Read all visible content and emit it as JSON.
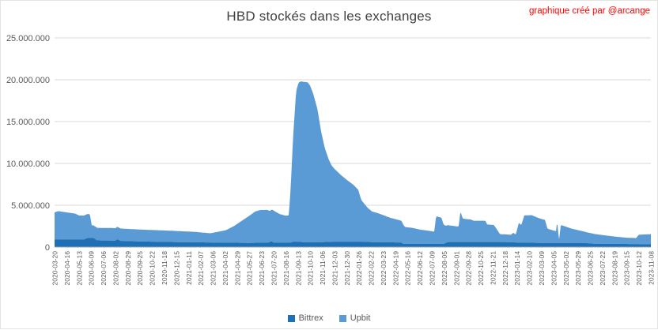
{
  "title": "HBD stockés dans les exchanges",
  "credit": "graphique créé par @arcange",
  "colors": {
    "bittrex": "#1F6FB5",
    "upbit": "#5B9BD5",
    "grid": "#D9D9D9",
    "axis_line": "#A6A6A6",
    "axis_text": "#595959",
    "title_text": "#404040",
    "credit_text": "#FF0000"
  },
  "chart_data": {
    "type": "area",
    "stacked": true,
    "title": "HBD stockés dans les exchanges",
    "legend_position": "bottom",
    "grid": "horizontal",
    "unit": "millions of HBD",
    "ylim_millions": [
      0,
      25
    ],
    "y_ticks": [
      "0",
      "5.000.000",
      "10.000.000",
      "15.000.000",
      "20.000.000",
      "25.000.000"
    ],
    "x_unit": "fractional tick index, 0 = 2020-03-20, 49 = 2023-11-08",
    "x_tick_labels": [
      "2020-03-20",
      "2020-04-16",
      "2020-05-13",
      "2020-06-09",
      "2020-07-06",
      "2020-08-02",
      "2020-08-29",
      "2020-09-25",
      "2020-10-22",
      "2020-11-18",
      "2020-12-15",
      "2021-01-11",
      "2021-02-07",
      "2021-03-06",
      "2021-04-02",
      "2021-04-29",
      "2021-05-27",
      "2021-06-23",
      "2021-07-20",
      "2021-08-16",
      "2021-09-13",
      "2021-10-10",
      "2021-11-06",
      "2021-12-03",
      "2021-12-30",
      "2022-01-26",
      "2022-02-22",
      "2022-03-23",
      "2022-04-19",
      "2022-05-16",
      "2022-06-12",
      "2022-07-09",
      "2022-08-05",
      "2022-09-01",
      "2022-09-28",
      "2022-10-25",
      "2022-11-21",
      "2022-12-18",
      "2023-01-14",
      "2023-02-10",
      "2023-03-09",
      "2023-04-05",
      "2023-05-02",
      "2023-05-29",
      "2023-06-25",
      "2023-07-22",
      "2023-08-19",
      "2023-09-15",
      "2023-10-12",
      "2023-11-08"
    ],
    "series": [
      {
        "name": "Bittrex",
        "color": "#1F6FB5",
        "points": [
          [
            0,
            0.9
          ],
          [
            2.4,
            0.9
          ],
          [
            2.7,
            1.1
          ],
          [
            3.2,
            1.1
          ],
          [
            3.5,
            0.8
          ],
          [
            5.0,
            0.78
          ],
          [
            5.15,
            0.95
          ],
          [
            5.45,
            0.75
          ],
          [
            7,
            0.68
          ],
          [
            10,
            0.6
          ],
          [
            13,
            0.55
          ],
          [
            16,
            0.5
          ],
          [
            17.6,
            0.55
          ],
          [
            17.8,
            0.7
          ],
          [
            18.0,
            0.55
          ],
          [
            19.4,
            0.55
          ],
          [
            19.6,
            0.65
          ],
          [
            20.2,
            0.65
          ],
          [
            20.4,
            0.58
          ],
          [
            22,
            0.6
          ],
          [
            23,
            0.65
          ],
          [
            25.2,
            0.65
          ],
          [
            26,
            0.6
          ],
          [
            28.5,
            0.55
          ],
          [
            28.65,
            0.4
          ],
          [
            32.0,
            0.4
          ],
          [
            32.3,
            0.6
          ],
          [
            37.0,
            0.6
          ],
          [
            38,
            0.55
          ],
          [
            40,
            0.5
          ],
          [
            43.5,
            0.5
          ],
          [
            44.4,
            0.4
          ],
          [
            46.5,
            0.38
          ],
          [
            49,
            0.35
          ]
        ]
      },
      {
        "name": "Upbit",
        "color": "#5B9BD5",
        "points": [
          [
            0,
            3.25
          ],
          [
            0.3,
            3.4
          ],
          [
            1.7,
            3.1
          ],
          [
            2.0,
            2.88
          ],
          [
            2.9,
            2.85
          ],
          [
            3.05,
            1.5
          ],
          [
            4.5,
            1.5
          ],
          [
            7,
            1.42
          ],
          [
            9.5,
            1.35
          ],
          [
            11.5,
            1.25
          ],
          [
            12.8,
            1.1
          ],
          [
            14.1,
            1.5
          ],
          [
            14.75,
            2.0
          ],
          [
            15.4,
            2.65
          ],
          [
            16.05,
            3.3
          ],
          [
            16.5,
            3.75
          ],
          [
            16.9,
            3.9
          ],
          [
            17.5,
            3.9
          ],
          [
            17.7,
            3.7
          ],
          [
            17.95,
            3.85
          ],
          [
            18.5,
            3.4
          ],
          [
            19.0,
            3.2
          ],
          [
            19.25,
            3.25
          ],
          [
            19.4,
            6.5
          ],
          [
            19.6,
            12.5
          ],
          [
            19.85,
            18.0
          ],
          [
            20.05,
            19.0
          ],
          [
            20.3,
            19.2
          ],
          [
            20.8,
            19.1
          ],
          [
            21.0,
            18.7
          ],
          [
            21.25,
            17.75
          ],
          [
            21.6,
            15.9
          ],
          [
            21.9,
            13.25
          ],
          [
            22.2,
            11.25
          ],
          [
            22.5,
            9.95
          ],
          [
            22.75,
            9.15
          ],
          [
            23.0,
            8.7
          ],
          [
            23.5,
            8.0
          ],
          [
            24.0,
            7.4
          ],
          [
            24.55,
            6.8
          ],
          [
            24.95,
            6.2
          ],
          [
            25.2,
            5.0
          ],
          [
            25.5,
            4.45
          ],
          [
            25.75,
            4.05
          ],
          [
            26.1,
            3.65
          ],
          [
            26.5,
            3.5
          ],
          [
            27.0,
            3.25
          ],
          [
            27.55,
            2.95
          ],
          [
            28.1,
            2.75
          ],
          [
            28.5,
            2.6
          ],
          [
            28.8,
            2.0
          ],
          [
            29.4,
            1.9
          ],
          [
            30.0,
            1.7
          ],
          [
            30.5,
            1.6
          ],
          [
            31.2,
            1.45
          ],
          [
            31.35,
            3.3
          ],
          [
            31.8,
            3.1
          ],
          [
            31.95,
            2.35
          ],
          [
            32.15,
            2.05
          ],
          [
            33.2,
            1.85
          ],
          [
            33.35,
            3.65
          ],
          [
            33.55,
            2.8
          ],
          [
            34.2,
            2.7
          ],
          [
            34.45,
            2.55
          ],
          [
            35.4,
            2.55
          ],
          [
            35.55,
            2.1
          ],
          [
            36.1,
            2.05
          ],
          [
            36.4,
            1.4
          ],
          [
            36.6,
            0.95
          ],
          [
            37.5,
            0.9
          ],
          [
            37.7,
            1.15
          ],
          [
            37.9,
            0.95
          ],
          [
            38.15,
            2.35
          ],
          [
            38.35,
            2.1
          ],
          [
            38.6,
            3.25
          ],
          [
            39.2,
            3.3
          ],
          [
            39.8,
            2.95
          ],
          [
            40.3,
            2.75
          ],
          [
            40.5,
            1.7
          ],
          [
            41.2,
            1.4
          ],
          [
            41.3,
            2.6
          ],
          [
            41.45,
            0.3
          ],
          [
            41.6,
            2.15
          ],
          [
            42.5,
            1.7
          ],
          [
            43.7,
            1.3
          ],
          [
            45.0,
            1.05
          ],
          [
            46.2,
            0.85
          ],
          [
            47.0,
            0.75
          ],
          [
            47.8,
            0.72
          ],
          [
            48.0,
            1.12
          ],
          [
            49,
            1.2
          ]
        ]
      }
    ]
  },
  "legend": {
    "items": [
      {
        "label": "Bittrex",
        "color": "#1F6FB5"
      },
      {
        "label": "Upbit",
        "color": "#5B9BD5"
      }
    ]
  }
}
